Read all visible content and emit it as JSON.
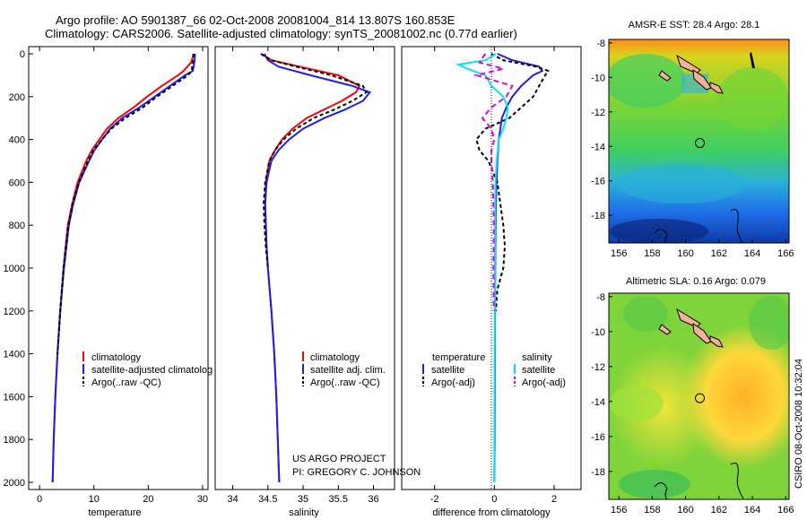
{
  "header": {
    "line1": "Argo profile: AO 5901387_66 02-Oct-2008 20081004_814 13.807S 160.853E",
    "line2": "Climatology: CARS2006. Satellite-adjusted climatology: synTS_20081002.nc (0.77d earlier)"
  },
  "credit": {
    "project": "US ARGO PROJECT",
    "pi": "PI: GREGORY C. JOHNSON"
  },
  "stamp": "CSIRO 08-Oct-2008 10:32:04",
  "colors": {
    "climatology": "#ff0000",
    "satellite": "#1e1ee6",
    "argo": "#000000",
    "salinity_satellite": "#00e5ee",
    "salinity_argo": "#e000e0"
  },
  "chart_data": [
    {
      "type": "line",
      "id": "temperature",
      "xlabel": "temperature",
      "ylabel": "",
      "xlim": [
        -2,
        31
      ],
      "ylim": [
        2000,
        0
      ],
      "xticks": [
        0,
        10,
        20,
        30
      ],
      "yticks": [
        0,
        200,
        400,
        600,
        800,
        1000,
        1200,
        1400,
        1600,
        1800,
        2000
      ],
      "legend": [
        "climatology",
        "satellite-adjusted climatolog",
        "Argo(..raw -QC)"
      ],
      "series": [
        {
          "name": "climatology",
          "color": "climatology",
          "dash": "",
          "depth": [
            0,
            40,
            80,
            100,
            150,
            200,
            250,
            300,
            350,
            400,
            450,
            500,
            600,
            700,
            800,
            1000,
            1200,
            1400,
            1600,
            1800,
            2000
          ],
          "values": [
            28.4,
            27.9,
            26.5,
            25.5,
            22.5,
            19.8,
            17.3,
            14.5,
            12.4,
            11.0,
            9.6,
            8.6,
            7.0,
            6.0,
            5.2,
            4.4,
            3.8,
            3.3,
            2.9,
            2.6,
            2.4
          ]
        },
        {
          "name": "satellite-adjusted climatology",
          "color": "satellite",
          "dash": "",
          "depth": [
            0,
            40,
            80,
            100,
            150,
            200,
            250,
            300,
            350,
            400,
            450,
            500,
            600,
            700,
            800,
            1000,
            1200,
            1400,
            1600,
            1800,
            2000
          ],
          "values": [
            28.6,
            28.5,
            28.2,
            26.8,
            24.0,
            21.2,
            18.4,
            15.2,
            13.0,
            11.5,
            10.1,
            9.1,
            7.3,
            6.2,
            5.4,
            4.5,
            3.8,
            3.3,
            2.9,
            2.6,
            2.4
          ]
        },
        {
          "name": "Argo(..raw -QC)",
          "color": "argo",
          "dash": "4,3",
          "depth": [
            0,
            40,
            80,
            100,
            150,
            200,
            250,
            300,
            350,
            400,
            450,
            500,
            600,
            700,
            800,
            1000,
            1200,
            1400
          ],
          "values": [
            28.3,
            28.2,
            28.0,
            27.3,
            24.5,
            21.6,
            19.0,
            15.8,
            13.2,
            11.5,
            9.9,
            8.9,
            7.2,
            6.1,
            5.3,
            4.4,
            3.8,
            3.3
          ]
        }
      ]
    },
    {
      "type": "line",
      "id": "salinity",
      "xlabel": "salinity",
      "ylabel": "",
      "xlim": [
        33.75,
        36.3
      ],
      "ylim": [
        2000,
        0
      ],
      "xticks": [
        34,
        34.5,
        35,
        35.5,
        36
      ],
      "yticks": [
        0,
        200,
        400,
        600,
        800,
        1000,
        1200,
        1400,
        1600,
        1800,
        2000
      ],
      "legend": [
        "climatology",
        "satellite adj. clim.",
        "Argo(..raw -QC)"
      ],
      "series": [
        {
          "name": "climatology",
          "color": "climatology",
          "dash": "",
          "depth": [
            0,
            30,
            60,
            100,
            150,
            180,
            220,
            260,
            300,
            350,
            400,
            450,
            500,
            600,
            700,
            800,
            900,
            1000,
            1200,
            1400,
            1600,
            1800,
            2000
          ],
          "values": [
            34.4,
            34.55,
            34.95,
            35.5,
            35.8,
            35.75,
            35.55,
            35.3,
            35.05,
            34.85,
            34.7,
            34.6,
            34.52,
            34.47,
            34.46,
            34.47,
            34.48,
            34.5,
            34.55,
            34.59,
            34.62,
            34.64,
            34.66
          ]
        },
        {
          "name": "satellite adj. clim.",
          "color": "satellite",
          "dash": "",
          "depth": [
            0,
            30,
            60,
            100,
            150,
            180,
            220,
            260,
            300,
            350,
            400,
            450,
            500,
            600,
            700,
            800,
            900,
            1000,
            1200,
            1400,
            1600,
            1800,
            2000
          ],
          "values": [
            34.45,
            34.5,
            34.65,
            35.1,
            35.7,
            35.95,
            35.85,
            35.6,
            35.3,
            35.0,
            34.8,
            34.65,
            34.55,
            34.48,
            34.46,
            34.47,
            34.48,
            34.5,
            34.55,
            34.59,
            34.62,
            34.64,
            34.66
          ]
        },
        {
          "name": "Argo(..raw -QC)",
          "color": "argo",
          "dash": "4,3",
          "depth": [
            0,
            30,
            60,
            100,
            150,
            180,
            220,
            260,
            300,
            350,
            400,
            450,
            500,
            600,
            700,
            800,
            900,
            1000
          ],
          "values": [
            34.4,
            34.55,
            34.9,
            35.4,
            35.85,
            35.9,
            35.7,
            35.45,
            35.15,
            34.9,
            34.72,
            34.6,
            34.52,
            34.46,
            34.44,
            34.45,
            34.47,
            34.5
          ]
        }
      ]
    },
    {
      "type": "line",
      "id": "difference",
      "xlabel": "difference from climatology",
      "ylabel": "",
      "xlim": [
        -3.1,
        2.9
      ],
      "ylim": [
        2000,
        0
      ],
      "xticks": [
        -2,
        0,
        2
      ],
      "yticks": [
        0,
        200,
        400,
        600,
        800,
        1000,
        1200,
        1400,
        1600,
        1800,
        2000
      ],
      "legend_headers": [
        "temperature",
        "salinity"
      ],
      "legend": [
        "satellite",
        "Argo(-adj)",
        "satellite",
        "Argo(-adj)"
      ],
      "series": [
        {
          "name": "temperature satellite",
          "color": "satellite",
          "dash": "",
          "depth": [
            0,
            30,
            60,
            80,
            100,
            150,
            200,
            250,
            300,
            400,
            500,
            700,
            1000,
            1400,
            1800,
            2000
          ],
          "values": [
            0.1,
            0.6,
            1.5,
            1.6,
            1.3,
            0.9,
            0.6,
            0.4,
            0.25,
            0.15,
            0.1,
            0.05,
            0.03,
            0.02,
            0.01,
            0.0
          ]
        },
        {
          "name": "temperature Argo(-adj)",
          "color": "argo",
          "dash": "4,3",
          "depth": [
            0,
            30,
            60,
            80,
            100,
            150,
            200,
            250,
            300,
            350,
            400,
            450,
            500,
            600,
            700,
            800,
            900,
            1000,
            1100,
            1200
          ],
          "values": [
            -0.1,
            0.3,
            1.4,
            1.8,
            1.7,
            1.5,
            1.3,
            0.9,
            0.5,
            -0.3,
            -0.6,
            -0.5,
            -0.2,
            0.1,
            0.2,
            0.3,
            0.35,
            0.3,
            0.1,
            0.05
          ]
        },
        {
          "name": "salinity satellite",
          "color": "salinity_satellite",
          "dash": "",
          "depth": [
            0,
            30,
            50,
            70,
            100,
            150,
            200,
            250,
            300,
            350,
            400,
            500,
            600,
            700,
            1000,
            1400,
            1800,
            2000
          ],
          "values": [
            0.05,
            -0.3,
            -1.2,
            -0.9,
            -0.3,
            -0.1,
            0.3,
            0.45,
            0.4,
            0.3,
            0.15,
            0.08,
            0.04,
            0.03,
            0.02,
            0.01,
            0.0,
            0.0
          ]
        },
        {
          "name": "salinity Argo(-adj)",
          "color": "salinity_argo",
          "dash": "6,4",
          "depth": [
            0,
            40,
            70,
            100,
            150,
            200,
            250,
            300,
            350,
            400,
            450,
            500,
            600,
            700,
            800,
            1000,
            1200
          ],
          "values": [
            -0.3,
            -0.5,
            0.3,
            -0.6,
            0.6,
            0.4,
            -0.1,
            -0.4,
            -0.1,
            0.0,
            -0.1,
            -0.1,
            -0.05,
            -0.03,
            -0.02,
            -0.03,
            -0.02
          ]
        }
      ]
    },
    {
      "type": "heatmap",
      "id": "sst",
      "title": "AMSR-E SST: 28.4  Argo: 28.1",
      "xticks": [
        156,
        158,
        160,
        162,
        164,
        166
      ],
      "yticks": [
        -8,
        -10,
        -12,
        -14,
        -16,
        -18
      ],
      "xlim": [
        155.4,
        166.2
      ],
      "ylim": [
        -19.6,
        -7.8
      ],
      "marker": {
        "lon": 160.853,
        "lat": -13.807
      }
    },
    {
      "type": "heatmap",
      "id": "sla",
      "title": "Altimetric SLA: 0.16  Argo: 0.079",
      "xticks": [
        156,
        158,
        160,
        162,
        164,
        166
      ],
      "yticks": [
        -8,
        -10,
        -12,
        -14,
        -16,
        -18
      ],
      "xlim": [
        155.4,
        166.2
      ],
      "ylim": [
        -19.6,
        -7.8
      ],
      "marker": {
        "lon": 160.853,
        "lat": -13.807
      }
    }
  ]
}
